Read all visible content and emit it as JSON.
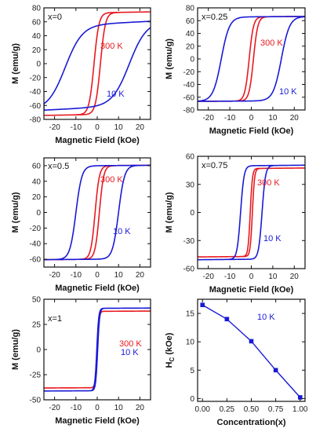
{
  "colors": {
    "red": "#e8191f",
    "blue": "#1a1ad6",
    "axis": "#111111"
  },
  "chart_data": [
    {
      "type": "line",
      "sample_label": "x=0",
      "xlabel": "Magnetic Field (kOe)",
      "ylabel": "M (emu/g)",
      "xlim": [
        -25,
        25
      ],
      "ylim": [
        -80,
        80
      ],
      "xticks": [
        -20,
        -10,
        0,
        10,
        20
      ],
      "yticks": [
        -80,
        -60,
        -40,
        -20,
        0,
        20,
        40,
        60,
        80
      ],
      "series": [
        {
          "name": "300 K",
          "color": "red",
          "Ms": 73,
          "Hc": 1.5,
          "w": 2.3,
          "offset": 0,
          "tilt": 0.05
        },
        {
          "name": "10 K",
          "color": "blue",
          "Ms": 60,
          "Hc": 15,
          "w": 8,
          "offset": -3,
          "tilt": 0.15
        }
      ]
    },
    {
      "type": "line",
      "sample_label": "x=0.25",
      "xlabel": "Magnetic Field (kOe)",
      "ylabel": "M (emu/g)",
      "xlim": [
        -25,
        25
      ],
      "ylim": [
        -80,
        80
      ],
      "xticks": [
        -20,
        -10,
        0,
        10,
        20
      ],
      "yticks": [
        -80,
        -60,
        -40,
        -20,
        0,
        20,
        40,
        60,
        80
      ],
      "series": [
        {
          "name": "300 K",
          "color": "red",
          "Ms": 66,
          "Hc": 1,
          "w": 2,
          "offset": 0,
          "tilt": 0.02
        },
        {
          "name": "10 K",
          "color": "blue",
          "Ms": 66,
          "Hc": 14,
          "w": 3.8,
          "offset": 0,
          "tilt": 0.02
        }
      ]
    },
    {
      "type": "line",
      "sample_label": "x=0.5",
      "xlabel": "Magnetic Field (kOe)",
      "ylabel": "M (emu/g)",
      "xlim": [
        -25,
        25
      ],
      "ylim": [
        -70,
        70
      ],
      "xticks": [
        -20,
        -10,
        0,
        10,
        20
      ],
      "yticks": [
        -60,
        -40,
        -20,
        0,
        20,
        40,
        60
      ],
      "series": [
        {
          "name": "300 K",
          "color": "red",
          "Ms": 60,
          "Hc": 1,
          "w": 2,
          "offset": 0,
          "tilt": 0.02
        },
        {
          "name": "10 K",
          "color": "blue",
          "Ms": 60,
          "Hc": 10,
          "w": 2.8,
          "offset": 0,
          "tilt": 0.02
        }
      ]
    },
    {
      "type": "line",
      "sample_label": "x=0.75",
      "xlabel": "Magnetic Field (kOe)",
      "ylabel": "M (emu/g)",
      "xlim": [
        -25,
        25
      ],
      "ylim": [
        -60,
        60
      ],
      "xticks": [
        -20,
        -10,
        0,
        10,
        20
      ],
      "yticks": [
        -60,
        -30,
        0,
        30,
        60
      ],
      "series": [
        {
          "name": "300 K",
          "color": "red",
          "Ms": 47,
          "Hc": 0.5,
          "w": 1,
          "offset": 0,
          "tilt": 0.02
        },
        {
          "name": "10 K",
          "color": "blue",
          "Ms": 50,
          "Hc": 5,
          "w": 1.6,
          "offset": 0,
          "tilt": 0.02
        }
      ]
    },
    {
      "type": "line",
      "sample_label": "x=1",
      "xlabel": "Magnetic Field (kOe)",
      "ylabel": "M (emu/g)",
      "xlim": [
        -25,
        25
      ],
      "ylim": [
        -50,
        50
      ],
      "xticks": [
        -20,
        -10,
        0,
        10,
        20
      ],
      "yticks": [
        -50,
        -25,
        0,
        25,
        50
      ],
      "series": [
        {
          "name": "300 K",
          "color": "red",
          "Ms": 38,
          "Hc": 0.1,
          "w": 0.8,
          "offset": 0,
          "tilt": 0.01
        },
        {
          "name": "10 K",
          "color": "blue",
          "Ms": 41,
          "Hc": 0.2,
          "w": 0.9,
          "offset": 0,
          "tilt": 0.01
        }
      ]
    },
    {
      "type": "line",
      "annotation": "10 K",
      "xlabel": "Concentration(x)",
      "ylabel": "H",
      "ylabel_sub": "C",
      "ylabel_unit": " (kOe)",
      "xlim": [
        -0.05,
        1.05
      ],
      "ylim": [
        -0.5,
        17.5
      ],
      "xticks": [
        0.0,
        0.25,
        0.5,
        0.75,
        1.0
      ],
      "xtick_labels": [
        "0.00",
        "0.25",
        "0.50",
        "0.75",
        "1.00"
      ],
      "yticks": [
        0,
        5,
        10,
        15
      ],
      "series": [
        {
          "name": "10 K",
          "color": "blue",
          "x": [
            0.0,
            0.25,
            0.5,
            0.75,
            1.0
          ],
          "y": [
            16.5,
            14.0,
            10.1,
            5.0,
            0.2
          ]
        }
      ]
    }
  ]
}
